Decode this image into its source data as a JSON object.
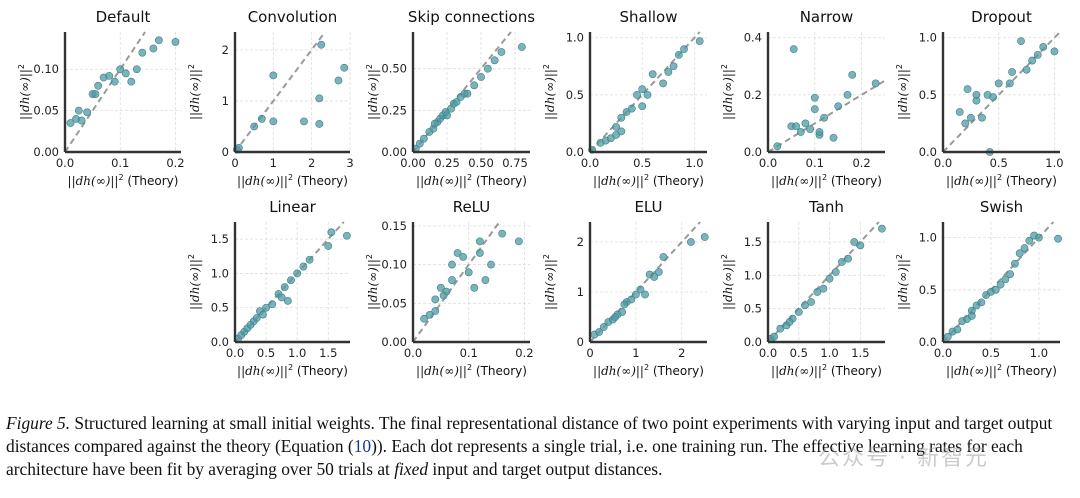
{
  "figure": {
    "x_label_main": "||dh(∞)||",
    "x_label_suffix": " (Theory)",
    "y_label": "||dh(∞)||",
    "superscript": "2"
  },
  "caption": {
    "label": "Figure 5.",
    "part1": " Structured learning at small initial weights. The final representational distance of two point experiments with varying input and target output distances compared against the theory (Equation (",
    "eq_ref": "10",
    "part2": ")). Each dot represents a single trial, i.e. one training run. The effective learning rates for each architecture have been fit by averaging over 50 trials at ",
    "emph": "fixed",
    "part3": " input and target output distances."
  },
  "watermark": "公众号 · 新智元",
  "colors": {
    "point": "#4f9aa3",
    "diagonal": "#9a9a9a",
    "axis": "#333333",
    "grid": "#dddddd"
  },
  "chart_data": [
    {
      "type": "scatter",
      "title": "Default",
      "xlim": [
        0,
        0.21
      ],
      "ylim": [
        0,
        0.145
      ],
      "xticks": [
        "0.0",
        "0.1",
        "0.2"
      ],
      "xtick_values": [
        0,
        0.1,
        0.2
      ],
      "yticks": [
        "0.00",
        "0.05",
        "0.10"
      ],
      "ytick_values": [
        0,
        0.05,
        0.1
      ],
      "points": [
        [
          0.01,
          0.035
        ],
        [
          0.02,
          0.04
        ],
        [
          0.03,
          0.038
        ],
        [
          0.04,
          0.048
        ],
        [
          0.05,
          0.07
        ],
        [
          0.055,
          0.07
        ],
        [
          0.06,
          0.08
        ],
        [
          0.07,
          0.09
        ],
        [
          0.08,
          0.092
        ],
        [
          0.09,
          0.085
        ],
        [
          0.1,
          0.1
        ],
        [
          0.11,
          0.095
        ],
        [
          0.12,
          0.085
        ],
        [
          0.13,
          0.1
        ],
        [
          0.14,
          0.12
        ],
        [
          0.16,
          0.125
        ],
        [
          0.17,
          0.135
        ],
        [
          0.2,
          0.133
        ],
        [
          0.025,
          0.05
        ]
      ]
    },
    {
      "type": "scatter",
      "title": "Convolution",
      "xlim": [
        0,
        3
      ],
      "ylim": [
        0,
        2.35
      ],
      "xticks": [
        "0",
        "1",
        "2",
        "3"
      ],
      "xtick_values": [
        0,
        1,
        2,
        3
      ],
      "yticks": [
        "0",
        "1",
        "2"
      ],
      "ytick_values": [
        0,
        1,
        2
      ],
      "points": [
        [
          0.05,
          0.05
        ],
        [
          0.1,
          0.08
        ],
        [
          0.5,
          0.5
        ],
        [
          0.7,
          0.65
        ],
        [
          1.0,
          1.5
        ],
        [
          1.0,
          0.6
        ],
        [
          1.8,
          0.6
        ],
        [
          2.2,
          0.55
        ],
        [
          2.2,
          1.05
        ],
        [
          2.25,
          2.1
        ],
        [
          2.7,
          1.4
        ],
        [
          2.85,
          1.65
        ]
      ]
    },
    {
      "type": "scatter",
      "title": "Skip connections",
      "xlim": [
        0,
        0.86
      ],
      "ylim": [
        0,
        0.72
      ],
      "xticks": [
        "0.00",
        "0.25",
        "0.50",
        "0.75"
      ],
      "xtick_values": [
        0,
        0.25,
        0.5,
        0.75
      ],
      "yticks": [
        "0.00",
        "0.25",
        "0.50"
      ],
      "ytick_values": [
        0,
        0.25,
        0.5
      ],
      "points": [
        [
          0.02,
          0.02
        ],
        [
          0.05,
          0.05
        ],
        [
          0.08,
          0.08
        ],
        [
          0.12,
          0.12
        ],
        [
          0.15,
          0.14
        ],
        [
          0.18,
          0.18
        ],
        [
          0.2,
          0.2
        ],
        [
          0.22,
          0.22
        ],
        [
          0.25,
          0.22
        ],
        [
          0.28,
          0.26
        ],
        [
          0.3,
          0.29
        ],
        [
          0.32,
          0.3
        ],
        [
          0.35,
          0.33
        ],
        [
          0.38,
          0.35
        ],
        [
          0.4,
          0.35
        ],
        [
          0.45,
          0.4
        ],
        [
          0.5,
          0.45
        ],
        [
          0.55,
          0.5
        ],
        [
          0.6,
          0.55
        ],
        [
          0.65,
          0.6
        ],
        [
          0.8,
          0.63
        ],
        [
          0.16,
          0.17
        ],
        [
          0.24,
          0.24
        ]
      ]
    },
    {
      "type": "scatter",
      "title": "Shallow",
      "xlim": [
        0,
        1.12
      ],
      "ylim": [
        0,
        1.05
      ],
      "xticks": [
        "0.0",
        "0.5",
        "1.0"
      ],
      "xtick_values": [
        0,
        0.5,
        1.0
      ],
      "yticks": [
        "0.0",
        "0.5",
        "1.0"
      ],
      "ytick_values": [
        0,
        0.5,
        1.0
      ],
      "points": [
        [
          0.02,
          0.02
        ],
        [
          0.1,
          0.08
        ],
        [
          0.15,
          0.1
        ],
        [
          0.2,
          0.12
        ],
        [
          0.25,
          0.15
        ],
        [
          0.3,
          0.3
        ],
        [
          0.3,
          0.18
        ],
        [
          0.35,
          0.35
        ],
        [
          0.4,
          0.38
        ],
        [
          0.45,
          0.5
        ],
        [
          0.5,
          0.4
        ],
        [
          0.5,
          0.55
        ],
        [
          0.55,
          0.5
        ],
        [
          0.6,
          0.68
        ],
        [
          0.7,
          0.6
        ],
        [
          0.75,
          0.7
        ],
        [
          0.8,
          0.75
        ],
        [
          0.85,
          0.85
        ],
        [
          0.9,
          0.9
        ],
        [
          1.05,
          0.97
        ],
        [
          0.25,
          0.22
        ]
      ]
    },
    {
      "type": "scatter",
      "title": "Narrow",
      "xlim": [
        0,
        0.25
      ],
      "ylim": [
        0,
        0.42
      ],
      "xticks": [
        "0.0",
        "0.1",
        "0.2"
      ],
      "xtick_values": [
        0,
        0.1,
        0.2
      ],
      "yticks": [
        "0.0",
        "0.2",
        "0.4"
      ],
      "ytick_values": [
        0,
        0.2,
        0.4
      ],
      "points": [
        [
          0.02,
          0.02
        ],
        [
          0.05,
          0.09
        ],
        [
          0.055,
          0.36
        ],
        [
          0.06,
          0.09
        ],
        [
          0.07,
          0.07
        ],
        [
          0.08,
          0.1
        ],
        [
          0.09,
          0.08
        ],
        [
          0.1,
          0.15
        ],
        [
          0.1,
          0.19
        ],
        [
          0.11,
          0.06
        ],
        [
          0.11,
          0.07
        ],
        [
          0.12,
          0.12
        ],
        [
          0.14,
          0.05
        ],
        [
          0.15,
          0.16
        ],
        [
          0.17,
          0.2
        ],
        [
          0.18,
          0.27
        ],
        [
          0.23,
          0.24
        ]
      ]
    },
    {
      "type": "scatter",
      "title": "Dropout",
      "xlim": [
        0,
        1.05
      ],
      "ylim": [
        0,
        1.05
      ],
      "xticks": [
        "0.0",
        "0.5",
        "1.0"
      ],
      "xtick_values": [
        0,
        0.5,
        1.0
      ],
      "yticks": [
        "0.0",
        "0.5",
        "1.0"
      ],
      "ytick_values": [
        0,
        0.5,
        1.0
      ],
      "points": [
        [
          0.15,
          0.35
        ],
        [
          0.2,
          0.25
        ],
        [
          0.22,
          0.55
        ],
        [
          0.25,
          0.3
        ],
        [
          0.3,
          0.45
        ],
        [
          0.35,
          0.3
        ],
        [
          0.4,
          0.5
        ],
        [
          0.42,
          0.0
        ],
        [
          0.45,
          0.48
        ],
        [
          0.5,
          0.6
        ],
        [
          0.6,
          0.6
        ],
        [
          0.62,
          0.7
        ],
        [
          0.7,
          0.97
        ],
        [
          0.75,
          0.72
        ],
        [
          0.8,
          0.8
        ],
        [
          0.85,
          0.85
        ],
        [
          0.9,
          0.92
        ],
        [
          1.0,
          0.88
        ],
        [
          0.3,
          0.5
        ]
      ]
    },
    {
      "type": "scatter",
      "title": "Linear",
      "xlim": [
        0,
        1.85
      ],
      "ylim": [
        0,
        1.75
      ],
      "xticks": [
        "0.0",
        "0.5",
        "1.0",
        "1.5"
      ],
      "xtick_values": [
        0,
        0.5,
        1.0,
        1.5
      ],
      "yticks": [
        "0.0",
        "0.5",
        "1.0",
        "1.5"
      ],
      "ytick_values": [
        0,
        0.5,
        1.0,
        1.5
      ],
      "points": [
        [
          0.05,
          0.05
        ],
        [
          0.1,
          0.1
        ],
        [
          0.15,
          0.15
        ],
        [
          0.2,
          0.2
        ],
        [
          0.3,
          0.3
        ],
        [
          0.35,
          0.35
        ],
        [
          0.4,
          0.45
        ],
        [
          0.45,
          0.4
        ],
        [
          0.5,
          0.5
        ],
        [
          0.6,
          0.55
        ],
        [
          0.7,
          0.7
        ],
        [
          0.75,
          0.65
        ],
        [
          0.8,
          0.8
        ],
        [
          0.85,
          0.6
        ],
        [
          0.9,
          0.9
        ],
        [
          1.0,
          1.0
        ],
        [
          1.1,
          1.1
        ],
        [
          1.2,
          1.2
        ],
        [
          1.5,
          1.4
        ],
        [
          1.55,
          1.6
        ],
        [
          1.8,
          1.55
        ],
        [
          0.25,
          0.25
        ]
      ]
    },
    {
      "type": "scatter",
      "title": "ReLU",
      "xlim": [
        0,
        0.21
      ],
      "ylim": [
        0,
        0.155
      ],
      "xticks": [
        "0.0",
        "0.1",
        "0.2"
      ],
      "xtick_values": [
        0,
        0.1,
        0.2
      ],
      "yticks": [
        "0.00",
        "0.05",
        "0.10",
        "0.15"
      ],
      "ytick_values": [
        0,
        0.05,
        0.1,
        0.15
      ],
      "points": [
        [
          0.02,
          0.03
        ],
        [
          0.03,
          0.035
        ],
        [
          0.04,
          0.04
        ],
        [
          0.04,
          0.055
        ],
        [
          0.05,
          0.07
        ],
        [
          0.06,
          0.065
        ],
        [
          0.07,
          0.08
        ],
        [
          0.07,
          0.1
        ],
        [
          0.08,
          0.115
        ],
        [
          0.09,
          0.11
        ],
        [
          0.1,
          0.09
        ],
        [
          0.11,
          0.07
        ],
        [
          0.12,
          0.115
        ],
        [
          0.12,
          0.13
        ],
        [
          0.13,
          0.08
        ],
        [
          0.14,
          0.1
        ],
        [
          0.16,
          0.14
        ],
        [
          0.19,
          0.13
        ],
        [
          0.055,
          0.06
        ]
      ]
    },
    {
      "type": "scatter",
      "title": "ELU",
      "xlim": [
        0,
        2.55
      ],
      "ylim": [
        0,
        2.4
      ],
      "xticks": [
        "0",
        "1",
        "2"
      ],
      "xtick_values": [
        0,
        1,
        2
      ],
      "yticks": [
        "0",
        "1",
        "2"
      ],
      "ytick_values": [
        0,
        1,
        2
      ],
      "points": [
        [
          0.1,
          0.15
        ],
        [
          0.2,
          0.2
        ],
        [
          0.3,
          0.3
        ],
        [
          0.4,
          0.4
        ],
        [
          0.5,
          0.45
        ],
        [
          0.6,
          0.55
        ],
        [
          0.7,
          0.6
        ],
        [
          0.8,
          0.8
        ],
        [
          0.9,
          0.85
        ],
        [
          1.0,
          0.95
        ],
        [
          1.1,
          1.05
        ],
        [
          1.2,
          0.95
        ],
        [
          1.3,
          1.35
        ],
        [
          1.4,
          1.3
        ],
        [
          1.5,
          1.4
        ],
        [
          1.6,
          1.7
        ],
        [
          2.2,
          2.0
        ],
        [
          2.5,
          2.1
        ],
        [
          0.55,
          0.5
        ],
        [
          0.75,
          0.75
        ]
      ]
    },
    {
      "type": "scatter",
      "title": "Tanh",
      "xlim": [
        0,
        1.9
      ],
      "ylim": [
        0,
        1.8
      ],
      "xticks": [
        "0.0",
        "0.5",
        "1.0",
        "1.5"
      ],
      "xtick_values": [
        0,
        0.5,
        1.0,
        1.5
      ],
      "yticks": [
        "0.0",
        "0.5",
        "1.0",
        "1.5"
      ],
      "ytick_values": [
        0,
        0.5,
        1.0,
        1.5
      ],
      "points": [
        [
          0.05,
          0.05
        ],
        [
          0.1,
          0.08
        ],
        [
          0.2,
          0.2
        ],
        [
          0.3,
          0.25
        ],
        [
          0.4,
          0.35
        ],
        [
          0.5,
          0.45
        ],
        [
          0.6,
          0.55
        ],
        [
          0.7,
          0.6
        ],
        [
          0.8,
          0.75
        ],
        [
          0.9,
          0.8
        ],
        [
          1.0,
          0.95
        ],
        [
          1.1,
          1.05
        ],
        [
          1.2,
          1.2
        ],
        [
          1.3,
          1.25
        ],
        [
          1.4,
          1.5
        ],
        [
          1.5,
          1.45
        ],
        [
          1.85,
          1.7
        ],
        [
          0.35,
          0.3
        ]
      ]
    },
    {
      "type": "scatter",
      "title": "Swish",
      "xlim": [
        0,
        1.22
      ],
      "ylim": [
        0,
        1.15
      ],
      "xticks": [
        "0.0",
        "0.5",
        "1.0"
      ],
      "xtick_values": [
        0,
        0.5,
        1.0
      ],
      "yticks": [
        "0.0",
        "0.5",
        "1.0"
      ],
      "ytick_values": [
        0,
        0.5,
        1.0
      ],
      "points": [
        [
          0.05,
          0.05
        ],
        [
          0.1,
          0.1
        ],
        [
          0.15,
          0.12
        ],
        [
          0.2,
          0.2
        ],
        [
          0.25,
          0.22
        ],
        [
          0.3,
          0.3
        ],
        [
          0.35,
          0.35
        ],
        [
          0.4,
          0.38
        ],
        [
          0.45,
          0.45
        ],
        [
          0.5,
          0.48
        ],
        [
          0.55,
          0.5
        ],
        [
          0.6,
          0.55
        ],
        [
          0.65,
          0.6
        ],
        [
          0.7,
          0.65
        ],
        [
          0.75,
          0.75
        ],
        [
          0.8,
          0.85
        ],
        [
          0.85,
          0.9
        ],
        [
          0.9,
          0.97
        ],
        [
          0.95,
          1.02
        ],
        [
          1.0,
          1.0
        ],
        [
          1.2,
          0.99
        ],
        [
          0.3,
          0.25
        ]
      ]
    }
  ]
}
